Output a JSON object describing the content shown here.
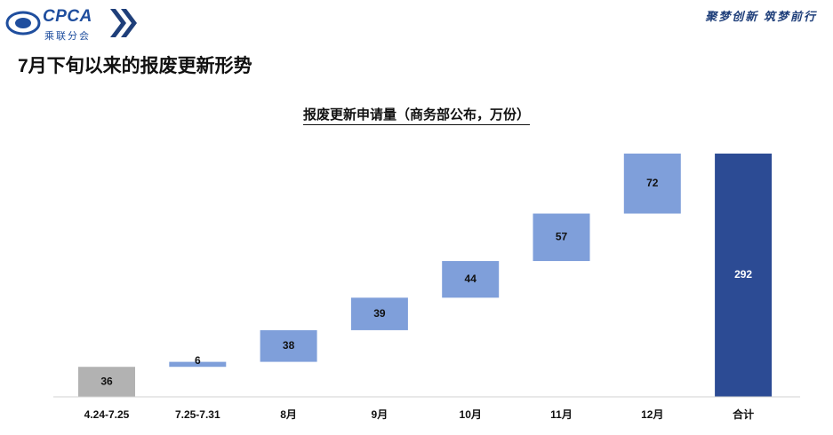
{
  "header": {
    "logo_text": "CPCA",
    "logo_sub": "乘联分会",
    "slogan": "聚梦创新 筑梦前行"
  },
  "page_title": "7月下旬以来的报废更新形势",
  "colors": {
    "first_bar": "#b2b2b2",
    "increment_bar": "#7f9fda",
    "total_bar": "#2c4b94",
    "logo_blue": "#1f4e9e"
  },
  "chart_data": {
    "type": "bar",
    "subtype": "waterfall",
    "title": "报废更新申请量（商务部公布，万份）",
    "categories": [
      "4.24-7.25",
      "7.25-7.31",
      "8月",
      "9月",
      "10月",
      "11月",
      "12月",
      "合计"
    ],
    "values": [
      36,
      6,
      38,
      39,
      44,
      57,
      72,
      292
    ],
    "base_values": [
      0,
      36,
      42,
      80,
      119,
      163,
      220,
      0
    ],
    "base_labels": [
      "",
      "36",
      "42",
      "80",
      "119",
      "163",
      "220",
      ""
    ],
    "ylim": [
      0,
      300
    ],
    "grid": false,
    "legend": "none"
  }
}
